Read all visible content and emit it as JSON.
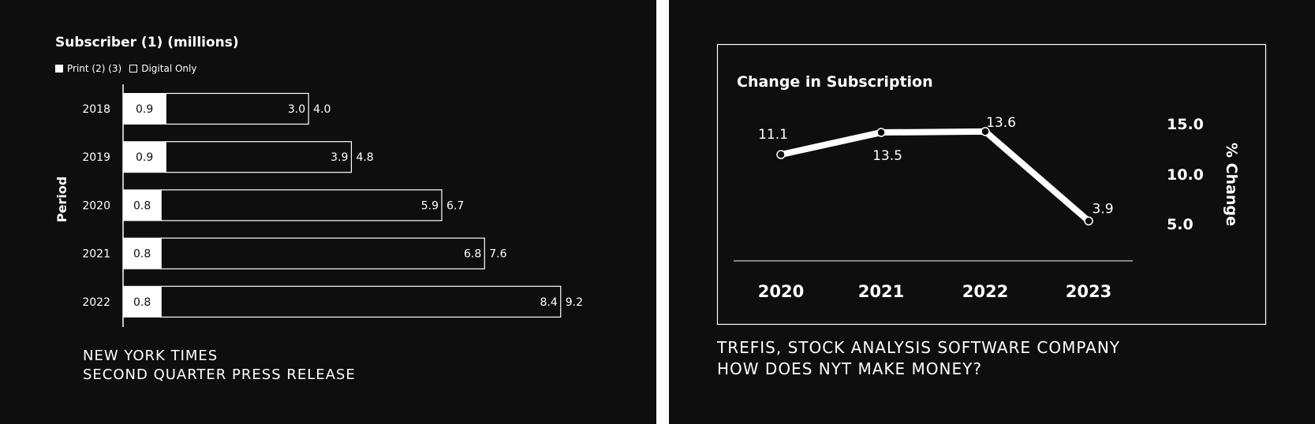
{
  "left_chart": {
    "title": "Subscriber (1) (millions)",
    "legend": [
      {
        "label": "Print (2) (3)",
        "style": "filled"
      },
      {
        "label": "Digital Only",
        "style": "outline"
      }
    ],
    "source_lines": [
      "NEW YORK TIMES",
      "SECOND QUARTER PRESS RELEASE"
    ]
  },
  "right_chart": {
    "title": "Change in Subscription",
    "source_lines": [
      "TREFIS, STOCK ANALYSIS SOFTWARE COMPANY",
      "HOW DOES NYT MAKE MONEY?"
    ]
  },
  "colors": {
    "background": "#0e0e0e",
    "foreground": "#ffffff"
  },
  "chart_data": [
    {
      "type": "bar",
      "orientation": "horizontal",
      "stacked": true,
      "title": "Subscriber (1) (millions)",
      "ylabel": "Period",
      "xlabel": "",
      "categories": [
        "2018",
        "2019",
        "2020",
        "2021",
        "2022"
      ],
      "series": [
        {
          "name": "Print (2) (3)",
          "values": [
            0.9,
            0.9,
            0.8,
            0.8,
            0.8
          ]
        },
        {
          "name": "Digital Only",
          "values": [
            3.0,
            3.9,
            5.9,
            6.8,
            8.4
          ]
        }
      ],
      "totals": [
        "4.0",
        "4.8",
        "6.7",
        "7.6",
        "9.2"
      ],
      "print_labels": [
        "0.9",
        "0.9",
        "0.8",
        "0.8",
        "0.8"
      ],
      "digital_labels": [
        "3.0",
        "3.9",
        "5.9",
        "6.8",
        "8.4"
      ],
      "xlim": [
        0,
        10
      ],
      "legend_position": "top-left"
    },
    {
      "type": "line",
      "title": "Change in Subscription",
      "x": [
        "2020",
        "2021",
        "2022",
        "2023"
      ],
      "values": [
        11.1,
        13.5,
        13.6,
        3.9
      ],
      "point_labels": [
        "11.1",
        "13.5",
        "13.6",
        "3.9"
      ],
      "ylabel": "% Change",
      "yticks": [
        "15.0",
        "10.0",
        "5.0"
      ],
      "ylim": [
        0,
        17
      ],
      "axis_position": "right"
    }
  ]
}
